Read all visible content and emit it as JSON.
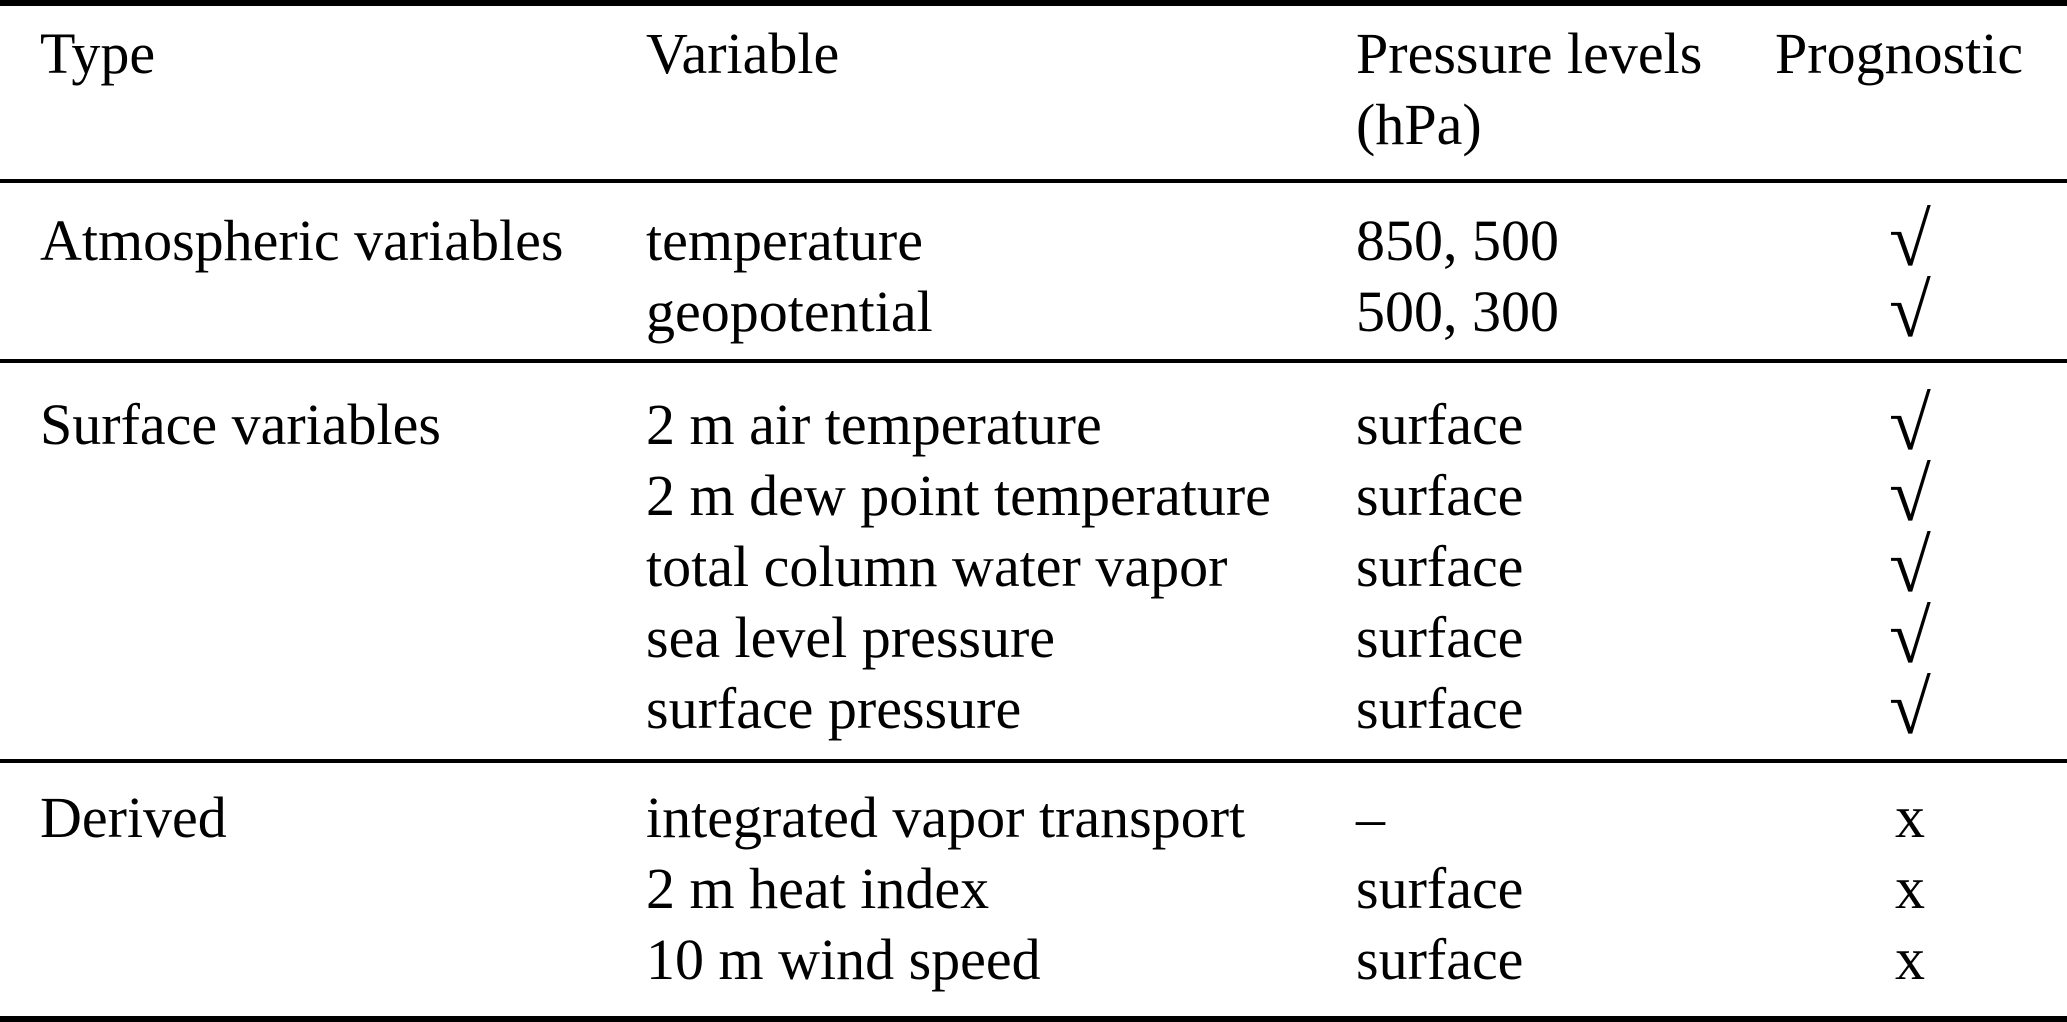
{
  "table": {
    "headers": {
      "type": "Type",
      "variable": "Variable",
      "pressure_levels_line1": "Pressure levels",
      "pressure_levels_line2": "(hPa)",
      "prognostic": "Prognostic"
    },
    "sections": [
      {
        "type": "Atmospheric variables",
        "rows": [
          {
            "variable": "temperature",
            "levels": "850, 500",
            "mark": "√",
            "prognostic": "yes"
          },
          {
            "variable": "geopotential",
            "levels": "500, 300",
            "mark": "√",
            "prognostic": "yes"
          }
        ]
      },
      {
        "type": "Surface variables",
        "rows": [
          {
            "variable": "2 m air temperature",
            "levels": "surface",
            "mark": "√",
            "prognostic": "yes"
          },
          {
            "variable": "2 m dew point temperature",
            "levels": "surface",
            "mark": "√",
            "prognostic": "yes"
          },
          {
            "variable": "total column water vapor",
            "levels": "surface",
            "mark": "√",
            "prognostic": "yes"
          },
          {
            "variable": "sea level pressure",
            "levels": "surface",
            "mark": "√",
            "prognostic": "yes"
          },
          {
            "variable": "surface pressure",
            "levels": "surface",
            "mark": "√",
            "prognostic": "yes"
          }
        ]
      },
      {
        "type": "Derived",
        "rows": [
          {
            "variable": "integrated vapor transport",
            "levels": "–",
            "mark": "x",
            "prognostic": "no"
          },
          {
            "variable": "2 m heat index",
            "levels": "surface",
            "mark": "x",
            "prognostic": "no"
          },
          {
            "variable": "10 m wind speed",
            "levels": "surface",
            "mark": "x",
            "prognostic": "no"
          }
        ]
      }
    ]
  }
}
